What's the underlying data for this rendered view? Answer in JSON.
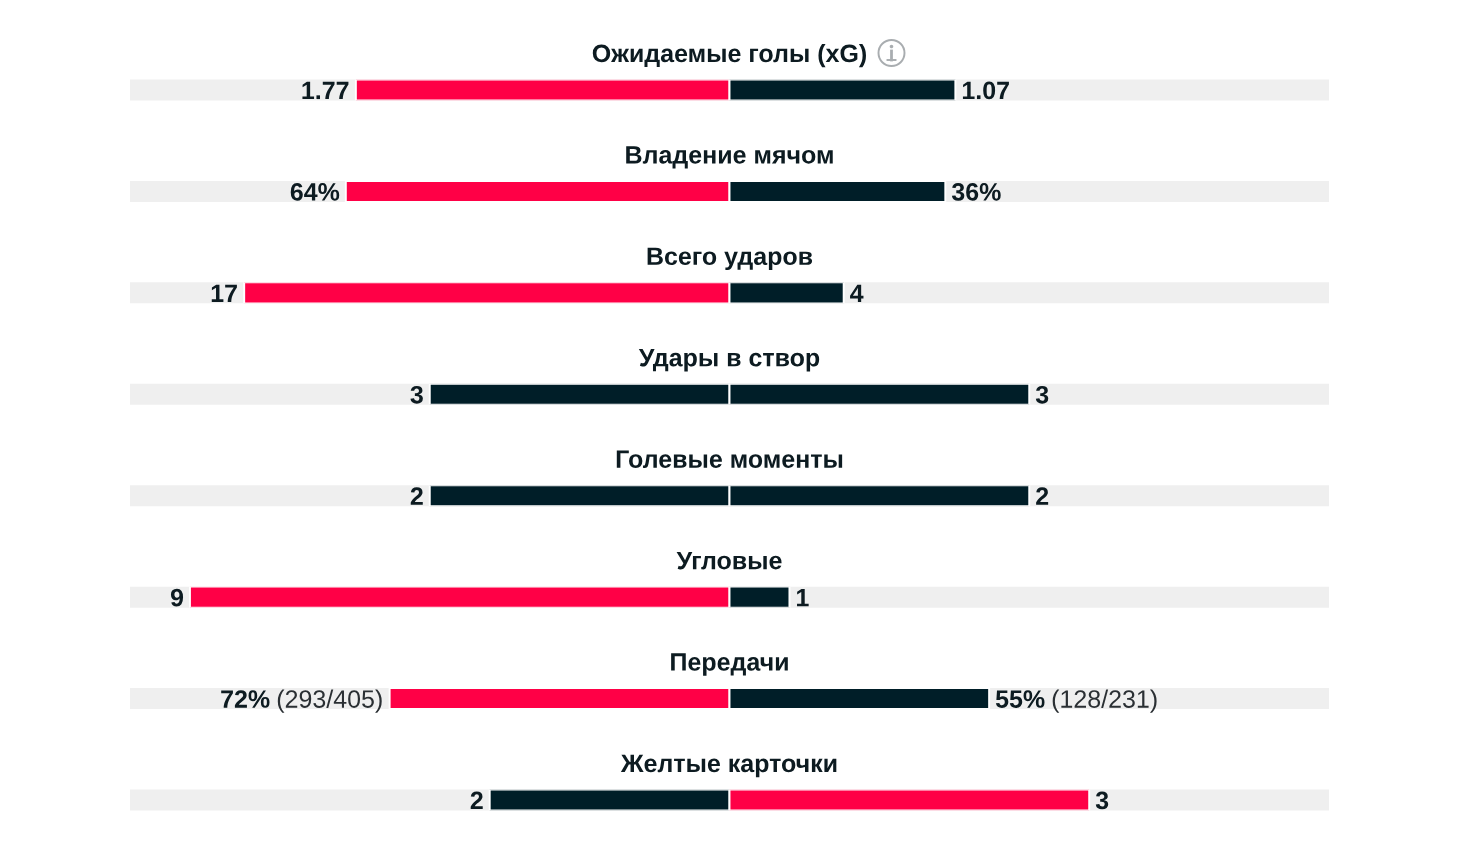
{
  "chart_data": [
    {
      "type": "bar",
      "orientation": "horizontal",
      "stacked": true,
      "data_labels": true,
      "title": "Ожидаемые голы (xG)",
      "categories": [
        null
      ],
      "series": [
        {
          "color": "#ff0046",
          "values": [
            1.77
          ]
        },
        {
          "color": "#001e28",
          "values": [
            1.07
          ]
        }
      ]
    },
    {
      "type": "bar",
      "orientation": "horizontal",
      "stacked": true,
      "title": "Владение мячом",
      "categories": [
        null
      ],
      "series": [
        {
          "color": "#ff0046",
          "values": [
            64
          ],
          "value_labels": [
            "64%"
          ]
        },
        {
          "color": "#001e28",
          "values": [
            36
          ],
          "value_labels": [
            "36%"
          ]
        }
      ]
    },
    {
      "type": "bar",
      "orientation": "horizontal",
      "stacked": true,
      "data_labels": true,
      "title": "Всего ударов",
      "categories": [
        null
      ],
      "series": [
        {
          "color": "#ff0046",
          "values": [
            17
          ]
        },
        {
          "color": "#001e28",
          "values": [
            4
          ]
        }
      ]
    },
    {
      "type": "bar",
      "orientation": "horizontal",
      "stacked": true,
      "data_labels": true,
      "title": "Удары в створ",
      "categories": [
        null
      ],
      "series": [
        {
          "color": "#001e28",
          "values": [
            3
          ]
        },
        {
          "color": "#001e28",
          "values": [
            3
          ]
        }
      ]
    },
    {
      "type": "bar",
      "orientation": "horizontal",
      "stacked": true,
      "data_labels": true,
      "title": "Голевые моменты",
      "categories": [
        null
      ],
      "series": [
        {
          "color": "#001e28",
          "values": [
            2
          ]
        },
        {
          "color": "#001e28",
          "values": [
            2
          ]
        }
      ]
    },
    {
      "type": "bar",
      "orientation": "horizontal",
      "stacked": true,
      "data_labels": true,
      "title": "Угловые",
      "categories": [
        null
      ],
      "series": [
        {
          "color": "#ff0046",
          "values": [
            9
          ]
        },
        {
          "color": "#001e28",
          "values": [
            1
          ]
        }
      ]
    },
    {
      "type": "bar",
      "orientation": "horizontal",
      "stacked": true,
      "title": "Передачи",
      "categories": [
        null
      ],
      "series": [
        {
          "color": "#ff0046",
          "values": [
            72
          ],
          "value_labels": [
            "72% (293/405)"
          ]
        },
        {
          "color": "#001e28",
          "values": [
            55
          ],
          "value_labels": [
            "55% (128/231)"
          ]
        }
      ]
    },
    {
      "type": "bar",
      "orientation": "horizontal",
      "stacked": true,
      "data_labels": true,
      "title": "Желтые карточки",
      "categories": [
        null
      ],
      "series": [
        {
          "color": "#001e28",
          "values": [
            2
          ]
        },
        {
          "color": "#ff0046",
          "values": [
            3
          ]
        }
      ]
    }
  ]
}
